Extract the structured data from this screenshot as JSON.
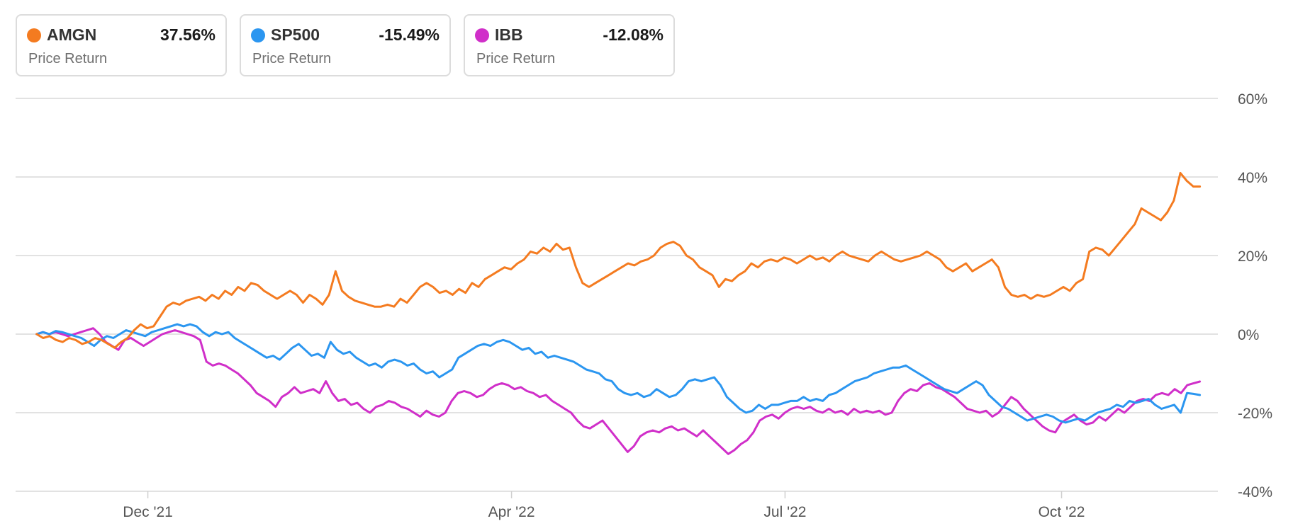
{
  "legend": [
    {
      "symbol": "AMGN",
      "value": "37.56%",
      "metric": "Price Return",
      "color": "#f47b20"
    },
    {
      "symbol": "SP500",
      "value": "-15.49%",
      "metric": "Price Return",
      "color": "#2b96f0"
    },
    {
      "symbol": "IBB",
      "value": "-12.08%",
      "metric": "Price Return",
      "color": "#d02fc9"
    }
  ],
  "chart_data": {
    "type": "line",
    "x_start": "2021-10-25",
    "x_end": "2022-11-16",
    "xlim": [
      "2021-10-18",
      "2022-11-22"
    ],
    "ylim": [
      -40,
      60
    ],
    "y_ticks": [
      60,
      40,
      20,
      0,
      -20,
      -40
    ],
    "y_tick_labels": [
      "60%",
      "40%",
      "20%",
      "0%",
      "-20%",
      "-40%"
    ],
    "x_ticks": [
      "2021-12-01",
      "2022-04-01",
      "2022-07-01",
      "2022-10-01"
    ],
    "x_tick_labels": [
      "Dec '21",
      "Apr '22",
      "Jul '22",
      "Oct '22"
    ],
    "grid": true,
    "legend_position": "top-left",
    "series": [
      {
        "name": "AMGN",
        "color": "#f47b20",
        "values": [
          0.0,
          -1.0,
          -0.5,
          -1.5,
          -2.0,
          -1.0,
          -1.5,
          -2.5,
          -2.0,
          -1.0,
          -1.5,
          -2.5,
          -3.5,
          -2.0,
          -1.0,
          1.0,
          2.5,
          1.5,
          2.0,
          4.5,
          7.0,
          8.0,
          7.5,
          8.5,
          9.0,
          9.5,
          8.5,
          10.0,
          9.0,
          11.0,
          10.0,
          12.0,
          11.0,
          13.0,
          12.5,
          11.0,
          10.0,
          9.0,
          10.0,
          11.0,
          10.0,
          8.0,
          10.0,
          9.0,
          7.5,
          10.0,
          16.0,
          11.0,
          9.5,
          8.5,
          8.0,
          7.5,
          7.0,
          7.0,
          7.5,
          7.0,
          9.0,
          8.0,
          10.0,
          12.0,
          13.0,
          12.0,
          10.5,
          11.0,
          10.0,
          11.5,
          10.5,
          13.0,
          12.0,
          14.0,
          15.0,
          16.0,
          17.0,
          16.5,
          18.0,
          19.0,
          21.0,
          20.5,
          22.0,
          21.0,
          23.0,
          21.5,
          22.0,
          17.0,
          13.0,
          12.0,
          13.0,
          14.0,
          15.0,
          16.0,
          17.0,
          18.0,
          17.5,
          18.5,
          19.0,
          20.0,
          22.0,
          23.0,
          23.5,
          22.5,
          20.0,
          19.0,
          17.0,
          16.0,
          15.0,
          12.0,
          14.0,
          13.5,
          15.0,
          16.0,
          18.0,
          17.0,
          18.5,
          19.0,
          18.5,
          19.5,
          19.0,
          18.0,
          19.0,
          20.0,
          19.0,
          19.5,
          18.5,
          20.0,
          21.0,
          20.0,
          19.5,
          19.0,
          18.5,
          20.0,
          21.0,
          20.0,
          19.0,
          18.5,
          19.0,
          19.5,
          20.0,
          21.0,
          20.0,
          19.0,
          17.0,
          16.0,
          17.0,
          18.0,
          16.0,
          17.0,
          18.0,
          19.0,
          17.0,
          12.0,
          10.0,
          9.5,
          10.0,
          9.0,
          10.0,
          9.5,
          10.0,
          11.0,
          12.0,
          11.0,
          13.0,
          14.0,
          21.0,
          22.0,
          21.5,
          20.0,
          22.0,
          24.0,
          26.0,
          28.0,
          32.0,
          31.0,
          30.0,
          29.0,
          31.0,
          34.0,
          41.0,
          39.0,
          37.56,
          37.56
        ]
      },
      {
        "name": "SP500",
        "color": "#2b96f0",
        "values": [
          0.0,
          0.5,
          0.0,
          0.8,
          0.5,
          0.0,
          -0.5,
          -1.0,
          -2.0,
          -3.0,
          -1.5,
          -0.5,
          -1.0,
          0.0,
          1.0,
          0.5,
          0.0,
          -0.5,
          0.5,
          1.0,
          1.5,
          2.0,
          2.5,
          2.0,
          2.5,
          2.0,
          0.5,
          -0.5,
          0.5,
          0.0,
          0.5,
          -1.0,
          -2.0,
          -3.0,
          -4.0,
          -5.0,
          -6.0,
          -5.5,
          -6.5,
          -5.0,
          -3.5,
          -2.5,
          -4.0,
          -5.5,
          -5.0,
          -6.0,
          -2.0,
          -4.0,
          -5.0,
          -4.5,
          -6.0,
          -7.0,
          -8.0,
          -7.5,
          -8.5,
          -7.0,
          -6.5,
          -7.0,
          -8.0,
          -7.5,
          -9.0,
          -10.0,
          -9.5,
          -11.0,
          -10.0,
          -9.0,
          -6.0,
          -5.0,
          -4.0,
          -3.0,
          -2.5,
          -3.0,
          -2.0,
          -1.5,
          -2.0,
          -3.0,
          -4.0,
          -3.5,
          -5.0,
          -4.5,
          -6.0,
          -5.5,
          -6.0,
          -6.5,
          -7.0,
          -8.0,
          -9.0,
          -9.5,
          -10.0,
          -11.5,
          -12.0,
          -14.0,
          -15.0,
          -15.5,
          -15.0,
          -16.0,
          -15.5,
          -14.0,
          -15.0,
          -16.0,
          -15.5,
          -14.0,
          -12.0,
          -11.5,
          -12.0,
          -11.5,
          -11.0,
          -13.0,
          -16.0,
          -17.5,
          -19.0,
          -20.0,
          -19.5,
          -18.0,
          -19.0,
          -18.0,
          -18.0,
          -17.5,
          -17.0,
          -17.0,
          -16.0,
          -17.0,
          -16.5,
          -17.0,
          -15.5,
          -15.0,
          -14.0,
          -13.0,
          -12.0,
          -11.5,
          -11.0,
          -10.0,
          -9.5,
          -9.0,
          -8.5,
          -8.5,
          -8.0,
          -9.0,
          -10.0,
          -11.0,
          -12.0,
          -13.0,
          -14.0,
          -14.5,
          -15.0,
          -14.0,
          -13.0,
          -12.0,
          -13.0,
          -15.5,
          -17.0,
          -18.5,
          -19.0,
          -20.0,
          -21.0,
          -22.0,
          -21.5,
          -21.0,
          -20.5,
          -21.0,
          -22.0,
          -22.5,
          -22.0,
          -21.5,
          -22.0,
          -21.0,
          -20.0,
          -19.5,
          -19.0,
          -18.0,
          -18.5,
          -17.0,
          -17.5,
          -17.0,
          -16.5,
          -18.0,
          -19.0,
          -18.5,
          -18.0,
          -20.0,
          -15.0,
          -15.2,
          -15.49
        ]
      },
      {
        "name": "IBB",
        "color": "#d02fc9",
        "values": [
          0.0,
          0.5,
          0.0,
          0.5,
          0.0,
          -0.5,
          0.0,
          0.5,
          1.0,
          1.5,
          0.0,
          -2.0,
          -3.0,
          -4.0,
          -1.5,
          -1.0,
          -2.0,
          -3.0,
          -2.0,
          -1.0,
          0.0,
          0.5,
          1.0,
          0.5,
          0.0,
          -0.5,
          -1.5,
          -7.0,
          -8.0,
          -7.5,
          -8.0,
          -9.0,
          -10.0,
          -11.5,
          -13.0,
          -15.0,
          -16.0,
          -17.0,
          -18.5,
          -16.0,
          -15.0,
          -13.5,
          -15.0,
          -14.5,
          -14.0,
          -15.0,
          -12.0,
          -15.0,
          -17.0,
          -16.5,
          -18.0,
          -17.5,
          -19.0,
          -20.0,
          -18.5,
          -18.0,
          -17.0,
          -17.5,
          -18.5,
          -19.0,
          -20.0,
          -21.0,
          -19.5,
          -20.5,
          -21.0,
          -20.0,
          -17.0,
          -15.0,
          -14.5,
          -15.0,
          -16.0,
          -15.5,
          -14.0,
          -13.0,
          -12.5,
          -13.0,
          -14.0,
          -13.5,
          -14.5,
          -15.0,
          -16.0,
          -15.5,
          -17.0,
          -18.0,
          -19.0,
          -20.0,
          -22.0,
          -23.5,
          -24.0,
          -23.0,
          -22.0,
          -24.0,
          -26.0,
          -28.0,
          -30.0,
          -28.5,
          -26.0,
          -25.0,
          -24.5,
          -25.0,
          -24.0,
          -23.5,
          -24.5,
          -24.0,
          -25.0,
          -26.0,
          -24.5,
          -26.0,
          -27.5,
          -29.0,
          -30.5,
          -29.5,
          -28.0,
          -27.0,
          -25.0,
          -22.0,
          -21.0,
          -20.5,
          -21.5,
          -20.0,
          -19.0,
          -18.5,
          -19.0,
          -18.5,
          -19.5,
          -20.0,
          -19.0,
          -20.0,
          -19.5,
          -20.5,
          -19.0,
          -20.0,
          -19.5,
          -20.0,
          -19.5,
          -20.5,
          -20.0,
          -17.0,
          -15.0,
          -14.0,
          -14.5,
          -13.0,
          -12.5,
          -13.5,
          -14.0,
          -15.0,
          -16.0,
          -17.5,
          -19.0,
          -19.5,
          -20.0,
          -19.5,
          -21.0,
          -20.0,
          -18.0,
          -16.0,
          -17.0,
          -19.0,
          -20.5,
          -22.0,
          -23.5,
          -24.5,
          -25.0,
          -22.5,
          -21.5,
          -20.5,
          -22.0,
          -23.0,
          -22.5,
          -21.0,
          -22.0,
          -20.5,
          -19.0,
          -20.0,
          -18.5,
          -17.0,
          -16.5,
          -17.0,
          -15.5,
          -15.0,
          -15.5,
          -14.0,
          -15.0,
          -13.0,
          -12.5,
          -12.08
        ]
      }
    ]
  }
}
